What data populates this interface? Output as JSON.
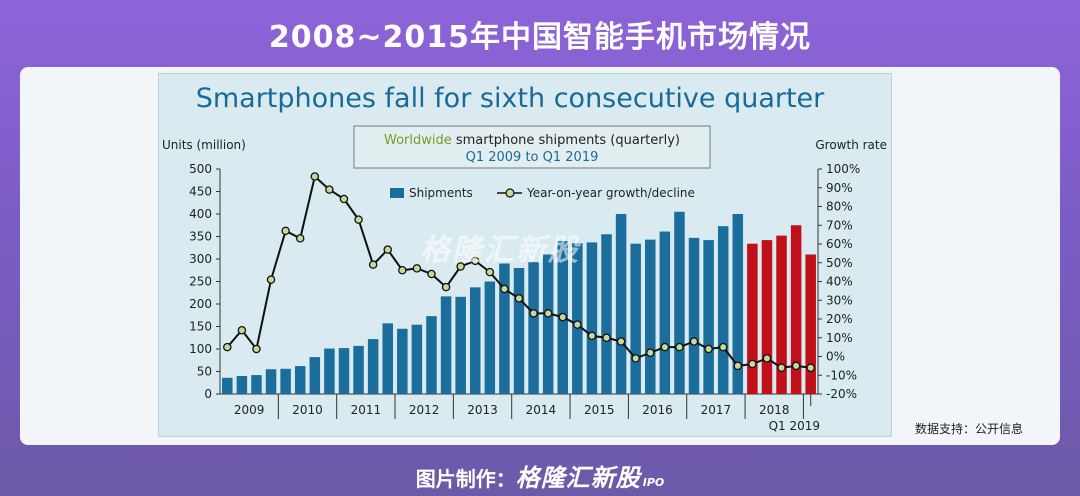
{
  "page_title": "2008~2015年中国智能手机市场情况",
  "source_note": "数据支持：公开信息",
  "credit": {
    "label": "图片制作：",
    "brand": "格隆汇新股",
    "suffix": "IPO"
  },
  "watermark": "格隆汇新股",
  "chart_data": {
    "type": "bar",
    "title": "Smartphones fall for sixth consecutive quarter",
    "subtitle_highlight": "Worldwide",
    "subtitle_rest": " smartphone shipments (quarterly)",
    "subtitle_range": "Q1 2009 to Q1 2019",
    "ylabel_left": "Units (million)",
    "ylabel_right": "Growth rate",
    "ylim": [
      0,
      500
    ],
    "y2lim": [
      -20,
      100
    ],
    "yticks": [
      "0",
      "50",
      "100",
      "150",
      "200",
      "250",
      "300",
      "350",
      "400",
      "450",
      "500"
    ],
    "y2ticks": [
      "-20%",
      "-10%",
      "0%",
      "10%",
      "20%",
      "30%",
      "40%",
      "50%",
      "60%",
      "70%",
      "80%",
      "90%",
      "100%"
    ],
    "years": [
      "2009",
      "2010",
      "2011",
      "2012",
      "2013",
      "2014",
      "2015",
      "2016",
      "2017",
      "2018"
    ],
    "last_label": "Q1 2019",
    "legend": {
      "bars": "Shipments",
      "line": "Year-on-year growth/decline"
    },
    "colors": {
      "bar": "#1b6d9b",
      "bar_highlight": "#c0111b",
      "line": "#111111",
      "marker": "#c9d79a"
    },
    "highlight_from_index": 36,
    "quarters": [
      "Q1 2009",
      "Q2 2009",
      "Q3 2009",
      "Q4 2009",
      "Q1 2010",
      "Q2 2010",
      "Q3 2010",
      "Q4 2010",
      "Q1 2011",
      "Q2 2011",
      "Q3 2011",
      "Q4 2011",
      "Q1 2012",
      "Q2 2012",
      "Q3 2012",
      "Q4 2012",
      "Q1 2013",
      "Q2 2013",
      "Q3 2013",
      "Q4 2013",
      "Q1 2014",
      "Q2 2014",
      "Q3 2014",
      "Q4 2014",
      "Q1 2015",
      "Q2 2015",
      "Q3 2015",
      "Q4 2015",
      "Q1 2016",
      "Q2 2016",
      "Q3 2016",
      "Q4 2016",
      "Q1 2017",
      "Q2 2017",
      "Q3 2017",
      "Q4 2017",
      "Q1 2018",
      "Q2 2018",
      "Q3 2018",
      "Q4 2018",
      "Q1 2019"
    ],
    "shipments": [
      36,
      40,
      42,
      55,
      56,
      62,
      82,
      101,
      102,
      107,
      122,
      157,
      145,
      154,
      173,
      217,
      216,
      237,
      250,
      290,
      280,
      293,
      310,
      340,
      335,
      337,
      355,
      400,
      334,
      343,
      361,
      405,
      347,
      342,
      373,
      400,
      334,
      342,
      352,
      375,
      310
    ],
    "growth_series_x": [
      0,
      1,
      2,
      3,
      4,
      5,
      6,
      7,
      8,
      9,
      10,
      11,
      12,
      13,
      14,
      15,
      16,
      17,
      18,
      19,
      20,
      21,
      22,
      23,
      24,
      25,
      26,
      27,
      28,
      29,
      30,
      31,
      32,
      33,
      34,
      35,
      36,
      37,
      38,
      39,
      40
    ],
    "growth": [
      5,
      14,
      4,
      41,
      67,
      63,
      96,
      89,
      84,
      73,
      49,
      57,
      46,
      47,
      44,
      37,
      48,
      51,
      45,
      36,
      31,
      23,
      23,
      21,
      17,
      11,
      10,
      8,
      -1,
      2,
      5,
      5,
      8,
      4,
      5,
      -5,
      -4,
      -1,
      -6,
      -5,
      -6
    ]
  }
}
